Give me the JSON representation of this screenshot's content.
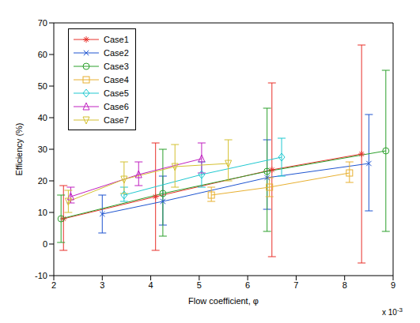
{
  "chart_data": {
    "type": "line",
    "x_label": "Flow coefficient, φ",
    "y_label": "Efficiency (%)",
    "x_offset_text": {
      "base": "x 10",
      "exponent": "-3"
    },
    "xlim": [
      2,
      9
    ],
    "xticks": [
      2,
      3,
      4,
      5,
      6,
      7,
      8,
      9
    ],
    "ylim": [
      -10,
      70
    ],
    "yticks": [
      -10,
      0,
      10,
      20,
      30,
      40,
      50,
      60,
      70
    ],
    "grid": false,
    "legend": "upper left",
    "series": [
      {
        "name": "Case1",
        "color": "#e8302a",
        "marker": "star",
        "x": [
          2.2,
          4.1,
          6.5,
          8.35
        ],
        "values": [
          8,
          15,
          23.5,
          28.5
        ],
        "lower": [
          -2,
          -2,
          -4,
          -6
        ],
        "upper": [
          18.5,
          32,
          51,
          63
        ]
      },
      {
        "name": "Case2",
        "color": "#1f55d0",
        "marker": "x",
        "x": [
          3.0,
          4.25,
          6.4,
          8.5
        ],
        "values": [
          9.5,
          13.5,
          21,
          25.5
        ],
        "lower": [
          3.5,
          6,
          11,
          10.5
        ],
        "upper": [
          15.5,
          21.5,
          33,
          41
        ]
      },
      {
        "name": "Case3",
        "color": "#2ca02c",
        "marker": "circle",
        "x": [
          2.15,
          4.25,
          6.4,
          8.85
        ],
        "values": [
          8,
          16,
          23,
          29.5
        ],
        "lower": [
          0.5,
          2.5,
          4,
          4
        ],
        "upper": [
          15.5,
          30,
          43,
          55
        ]
      },
      {
        "name": "Case4",
        "color": "#e8b030",
        "marker": "square",
        "x": [
          5.25,
          6.45,
          8.1
        ],
        "values": [
          15.5,
          18,
          22.5
        ],
        "lower": [
          13.5,
          15,
          19.5
        ],
        "upper": [
          18,
          21,
          26
        ]
      },
      {
        "name": "Case5",
        "color": "#20c8d0",
        "marker": "diamond",
        "x": [
          3.45,
          5.05,
          6.7
        ],
        "values": [
          15.5,
          22,
          27.5
        ],
        "lower": [
          13.5,
          18,
          21.5
        ],
        "upper": [
          18,
          26,
          33.5
        ]
      },
      {
        "name": "Case6",
        "color": "#c020c0",
        "marker": "triangle",
        "x": [
          2.35,
          3.75,
          5.05
        ],
        "values": [
          15,
          22,
          27
        ],
        "lower": [
          13,
          18.5,
          22.5
        ],
        "upper": [
          18,
          26,
          32
        ]
      },
      {
        "name": "Case7",
        "color": "#d4c030",
        "marker": "triangle-down",
        "x": [
          2.3,
          3.45,
          4.5,
          5.6
        ],
        "values": [
          13.5,
          20.5,
          24.5,
          25.5
        ],
        "lower": [
          10,
          16,
          18,
          20
        ],
        "upper": [
          17,
          26,
          31.5,
          33
        ]
      }
    ]
  }
}
